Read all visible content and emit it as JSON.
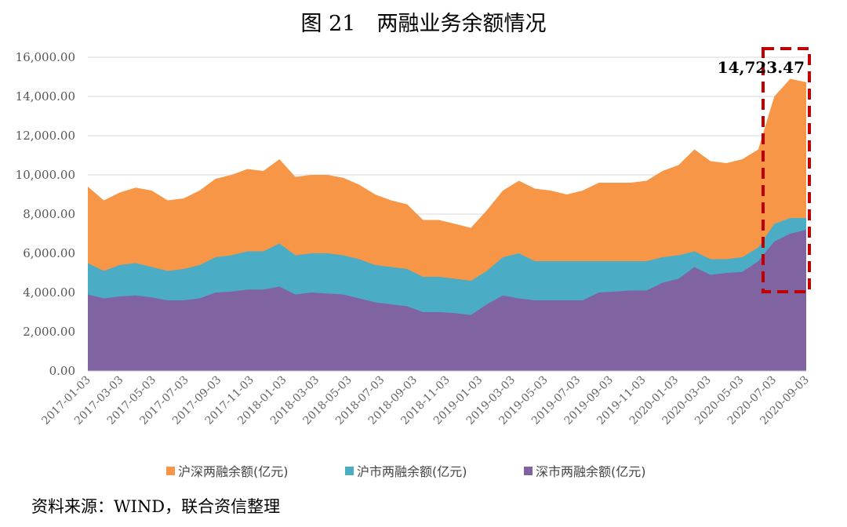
{
  "title": "图 21　两融业务余额情况",
  "source": "资料来源：WIND，联合资信整理",
  "chart_data": {
    "type": "area",
    "ylim": [
      0,
      16000
    ],
    "y_ticks": [
      "0.00",
      "2,000.00",
      "4,000.00",
      "6,000.00",
      "8,000.00",
      "10,000.00",
      "12,000.00",
      "14,000.00",
      "16,000.00"
    ],
    "x_ticks": [
      "2017-01-03",
      "2017-03-03",
      "2017-05-03",
      "2017-07-03",
      "2017-09-03",
      "2017-11-03",
      "2018-01-03",
      "2018-03-03",
      "2018-05-03",
      "2018-07-03",
      "2018-09-03",
      "2018-11-03",
      "2019-01-03",
      "2019-03-03",
      "2019-05-03",
      "2019-07-03",
      "2019-09-03",
      "2019-11-03",
      "2020-01-03",
      "2020-03-03",
      "2020-05-03",
      "2020-07-03",
      "2020-09-03"
    ],
    "x": [
      "2017-01-03",
      "2017-02-03",
      "2017-03-03",
      "2017-04-03",
      "2017-05-03",
      "2017-06-03",
      "2017-07-03",
      "2017-08-03",
      "2017-09-03",
      "2017-10-03",
      "2017-11-03",
      "2017-12-03",
      "2018-01-03",
      "2018-02-03",
      "2018-03-03",
      "2018-04-03",
      "2018-05-03",
      "2018-06-03",
      "2018-07-03",
      "2018-08-03",
      "2018-09-03",
      "2018-10-03",
      "2018-11-03",
      "2018-12-03",
      "2019-01-03",
      "2019-02-03",
      "2019-03-03",
      "2019-04-03",
      "2019-05-03",
      "2019-06-03",
      "2019-07-03",
      "2019-08-03",
      "2019-09-03",
      "2019-10-03",
      "2019-11-03",
      "2019-12-03",
      "2020-01-03",
      "2020-02-03",
      "2020-03-03",
      "2020-04-03",
      "2020-05-03",
      "2020-06-03",
      "2020-07-03",
      "2020-08-03",
      "2020-09-03",
      "2020-10-03"
    ],
    "series": [
      {
        "name": "沪深两融余额(亿元)",
        "color": "#F79646",
        "values": [
          9400,
          8700,
          9100,
          9350,
          9200,
          8700,
          8800,
          9200,
          9800,
          10000,
          10300,
          10200,
          10800,
          9900,
          10000,
          10000,
          9850,
          9500,
          9000,
          8700,
          8500,
          7700,
          7700,
          7500,
          7300,
          8200,
          9200,
          9700,
          9300,
          9200,
          9000,
          9200,
          9600,
          9600,
          9600,
          9700,
          10200,
          10500,
          11300,
          10700,
          10600,
          10800,
          11300,
          14000,
          14900,
          14723.47
        ]
      },
      {
        "name": "沪市两融余额(亿元)",
        "color": "#4BACC6",
        "values": [
          5500,
          5100,
          5400,
          5500,
          5300,
          5100,
          5200,
          5400,
          5800,
          5900,
          6100,
          6100,
          6500,
          5900,
          6000,
          6000,
          5900,
          5700,
          5400,
          5300,
          5200,
          4800,
          4800,
          4700,
          4600,
          5100,
          5800,
          6000,
          5600,
          5600,
          5600,
          5600,
          5600,
          5600,
          5600,
          5600,
          5800,
          5900,
          6100,
          5700,
          5700,
          5800,
          6300,
          7500,
          7800,
          7800
        ]
      },
      {
        "name": "深市两融余额(亿元)",
        "color": "#8064A2",
        "values": [
          3900,
          3700,
          3800,
          3850,
          3750,
          3600,
          3600,
          3700,
          4000,
          4050,
          4150,
          4150,
          4300,
          3900,
          4000,
          3950,
          3900,
          3700,
          3500,
          3400,
          3300,
          3000,
          3000,
          2950,
          2850,
          3400,
          3850,
          3700,
          3600,
          3600,
          3600,
          3600,
          4000,
          4050,
          4100,
          4100,
          4500,
          4700,
          5300,
          4900,
          5000,
          5050,
          5600,
          6600,
          7000,
          7200
        ]
      }
    ],
    "annotation": "14,723.47",
    "legend_position": "bottom",
    "grid": "horizontal"
  }
}
